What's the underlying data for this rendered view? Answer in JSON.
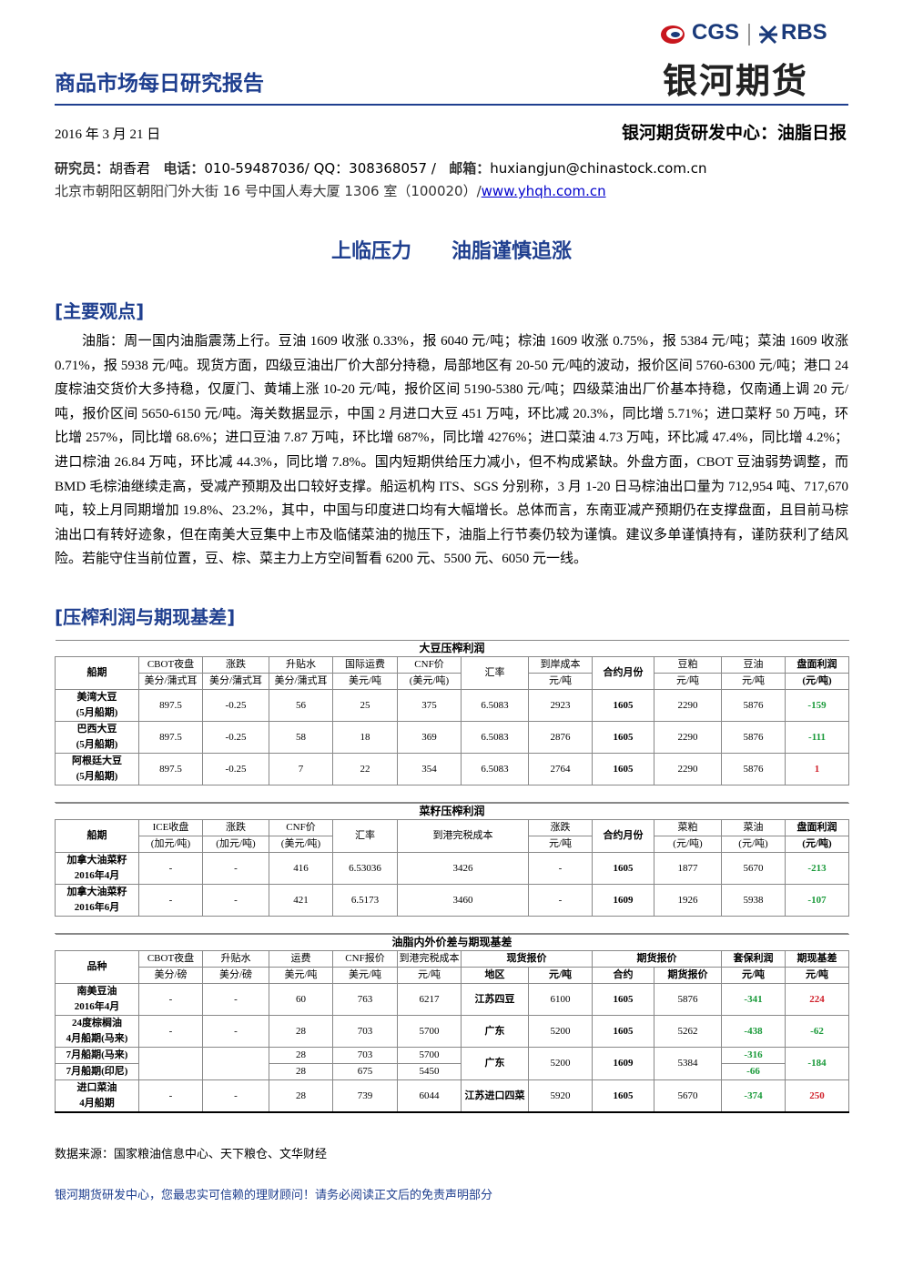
{
  "header": {
    "title": "商品市场每日研究报告",
    "logo_cgs": "CGS",
    "logo_rbs": "RBS",
    "company": "银河期货",
    "date": "2016 年 3 月 21 日",
    "report": "银河期货研发中心：油脂日报"
  },
  "contact": {
    "researcher_label": "研究员：",
    "researcher": "胡香君",
    "phone_label": "电话：",
    "phone": "010-59487036/ QQ：308368057 /",
    "email_label": "邮箱：",
    "email": "huxiangjun@chinastock.com.cn",
    "address": "北京市朝阳区朝阳门外大街 16 号中国人寿大厦 1306 室（100020）/",
    "website": "www.yhqh.com.cn"
  },
  "headline": {
    "part1": "上临压力",
    "part2": "油脂谨慎追涨"
  },
  "section1": "[主要观点]",
  "paragraph": "油脂：周一国内油脂震荡上行。豆油 1609 收涨 0.33%，报 6040 元/吨；棕油 1609 收涨 0.75%，报 5384 元/吨；菜油 1609 收涨 0.71%，报 5938 元/吨。现货方面，四级豆油出厂价大部分持稳，局部地区有 20-50 元/吨的波动，报价区间 5760-6300 元/吨；港口 24 度棕油交货价大多持稳，仅厦门、黄埔上涨 10-20 元/吨，报价区间 5190-5380 元/吨；四级菜油出厂价基本持稳，仅南通上调 20 元/吨，报价区间 5650-6150 元/吨。海关数据显示，中国 2 月进口大豆 451 万吨，环比减 20.3%，同比增 5.71%；进口菜籽 50 万吨，环比增 257%，同比增 68.6%；进口豆油 7.87 万吨，环比增 687%，同比增 4276%；进口菜油 4.73 万吨，环比减 47.4%，同比增 4.2%；进口棕油 26.84 万吨，环比减 44.3%，同比增 7.8%。国内短期供给压力减小，但不构成紧缺。外盘方面，CBOT 豆油弱势调整，而 BMD 毛棕油继续走高，受减产预期及出口较好支撑。船运机构 ITS、SGS 分别称，3 月 1-20 日马棕油出口量为 712,954 吨、717,670 吨，较上月同期增加 19.8%、23.2%，其中，中国与印度进口均有大幅增长。总体而言，东南亚减产预期仍在支撑盘面，且目前马棕油出口有转好迹象，但在南美大豆集中上市及临储菜油的抛压下，油脂上行节奏仍较为谨慎。建议多单谨慎持有，谨防获利了结风险。若能守住当前位置，豆、棕、菜主力上方空间暂看 6200 元、5500 元、6050 元一线。",
  "section2": "[压榨利润与期现基差]",
  "tables": [
    {
      "title": "大豆压榨利润",
      "columns": [
        {
          "top": "船期"
        },
        {
          "top": "CBOT夜盘",
          "unit": "美分/蒲式耳"
        },
        {
          "top": "涨跌",
          "unit": "美分/蒲式耳"
        },
        {
          "top": "升贴水",
          "unit": "美分/蒲式耳"
        },
        {
          "top": "国际运费",
          "unit": "美元/吨"
        },
        {
          "top": "CNF价",
          "unit": "(美元/吨)"
        },
        {
          "top": "汇率"
        },
        {
          "top": "到岸成本",
          "unit": "元/吨"
        },
        {
          "top": "合约月份"
        },
        {
          "top": "豆粕",
          "unit": "元/吨"
        },
        {
          "top": "豆油",
          "unit": "元/吨"
        },
        {
          "top": "盘面利润",
          "unit": "(元/吨)"
        }
      ],
      "rows": [
        {
          "name": "美湾大豆",
          "sub": "(5月船期)",
          "values": [
            "897.5",
            "-0.25",
            "56",
            "25",
            "375",
            "6.5083",
            "2923",
            "1605",
            "2290",
            "5876",
            "-159"
          ]
        },
        {
          "name": "巴西大豆",
          "sub": "(5月船期)",
          "values": [
            "897.5",
            "-0.25",
            "58",
            "18",
            "369",
            "6.5083",
            "2876",
            "1605",
            "2290",
            "5876",
            "-111"
          ]
        },
        {
          "name": "阿根廷大豆",
          "sub": "(5月船期)",
          "values": [
            "897.5",
            "-0.25",
            "7",
            "22",
            "354",
            "6.5083",
            "2764",
            "1605",
            "2290",
            "5876",
            "1"
          ]
        }
      ]
    },
    {
      "title": "菜籽压榨利润",
      "columns": [
        {
          "top": "船期"
        },
        {
          "top": "ICE收盘",
          "unit": "(加元/吨)"
        },
        {
          "top": "涨跌",
          "unit": "(加元/吨)"
        },
        {
          "top": "CNF价",
          "unit": "(美元/吨)"
        },
        {
          "top": "汇率"
        },
        {
          "top": "到港完税成本"
        },
        {
          "top": "涨跌",
          "unit": "元/吨"
        },
        {
          "top": "合约月份"
        },
        {
          "top": "菜粕",
          "unit": "(元/吨)"
        },
        {
          "top": "菜油",
          "unit": "(元/吨)"
        },
        {
          "top": "盘面利润",
          "unit": "(元/吨)"
        }
      ],
      "rows": [
        {
          "name": "加拿大油菜籽",
          "sub": "2016年4月",
          "values": [
            "-",
            "-",
            "416",
            "6.53036",
            "3426",
            "-",
            "1605",
            "1877",
            "5670",
            "-213"
          ]
        },
        {
          "name": "加拿大油菜籽",
          "sub": "2016年6月",
          "values": [
            "-",
            "-",
            "421",
            "6.5173",
            "3460",
            "-",
            "1609",
            "1926",
            "5938",
            "-107"
          ]
        }
      ]
    },
    {
      "title": "油脂内外价差与期现基差",
      "columns": [
        {
          "top": "品种"
        },
        {
          "top": "CBOT夜盘",
          "unit": "美分/磅"
        },
        {
          "top": "升贴水",
          "unit": "美分/磅"
        },
        {
          "top": "运费",
          "unit": "美元/吨"
        },
        {
          "top": "CNF报价",
          "unit": "美元/吨"
        },
        {
          "top": "到港完税成本",
          "unit": "元/吨"
        },
        {
          "top": "现货报价",
          "units": [
            "地区",
            "元/吨"
          ]
        },
        {
          "top": "期货报价",
          "units": [
            "合约",
            "期货报价"
          ]
        },
        {
          "top": "套保利润",
          "unit": "元/吨"
        },
        {
          "top": "期现基差",
          "unit": "元/吨"
        }
      ],
      "rows": [
        {
          "name": "南美豆油",
          "sub": "2016年4月",
          "values": [
            "-",
            "-",
            "60",
            "763",
            "6217",
            "江苏四豆",
            "6100",
            "1605",
            "5876",
            "-341",
            "224"
          ]
        },
        {
          "name": "24度棕榈油",
          "sub": "4月船期(马来)",
          "values": [
            "-",
            "-",
            "28",
            "703",
            "5700",
            "广东",
            "5200",
            "1605",
            "5262",
            "-438",
            "-62"
          ]
        },
        {
          "names": [
            "7月船期(马来)",
            "7月船期(印尼)"
          ],
          "values_a": [
            "28",
            "703",
            "5700"
          ],
          "values_b": [
            "28",
            "675",
            "5450"
          ],
          "shared": [
            "广东",
            "5200",
            "1609",
            "5384"
          ],
          "profit": [
            "-316",
            "-66"
          ],
          "basis": "-184"
        },
        {
          "name": "进口菜油",
          "sub": "4月船期",
          "values": [
            "-",
            "-",
            "28",
            "739",
            "6044",
            "江苏进口四菜",
            "5920",
            "1605",
            "5670",
            "-374",
            "250"
          ]
        }
      ]
    }
  ],
  "source": "数据来源：国家粮油信息中心、天下粮仓、文华财经",
  "footer": "银河期货研发中心，您最忠实可信赖的理财顾问！请务必阅读正文后的免责声明部分"
}
